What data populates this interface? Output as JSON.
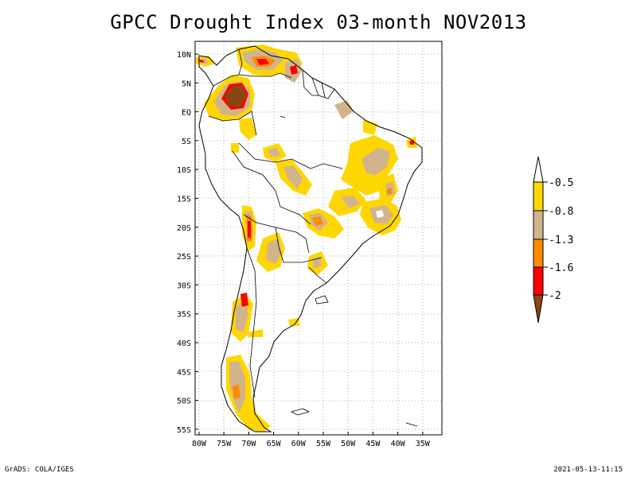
{
  "title": "GPCC Drought Index 03-month NOV2013",
  "footer": {
    "left": "GrADS: COLA/IGES",
    "right": "2021-05-13-11:15"
  },
  "lat_ticks": [
    "10N",
    "5N",
    "EQ",
    "5S",
    "10S",
    "15S",
    "20S",
    "25S",
    "30S",
    "35S",
    "40S",
    "45S",
    "50S",
    "55S"
  ],
  "lon_ticks": [
    "80W",
    "75W",
    "70W",
    "65W",
    "60W",
    "55W",
    "50W",
    "45W",
    "40W",
    "35W"
  ],
  "legend": {
    "labels": [
      "-0.5",
      "-0.8",
      "-1.3",
      "-1.6",
      "-2"
    ],
    "colors": {
      "top_arrow": "#ffffff",
      "band1": "#ffd700",
      "band2": "#d2b48c",
      "band3": "#ff8c00",
      "band4": "#ff0000",
      "bottom_arrow": "#8b4513"
    }
  }
}
